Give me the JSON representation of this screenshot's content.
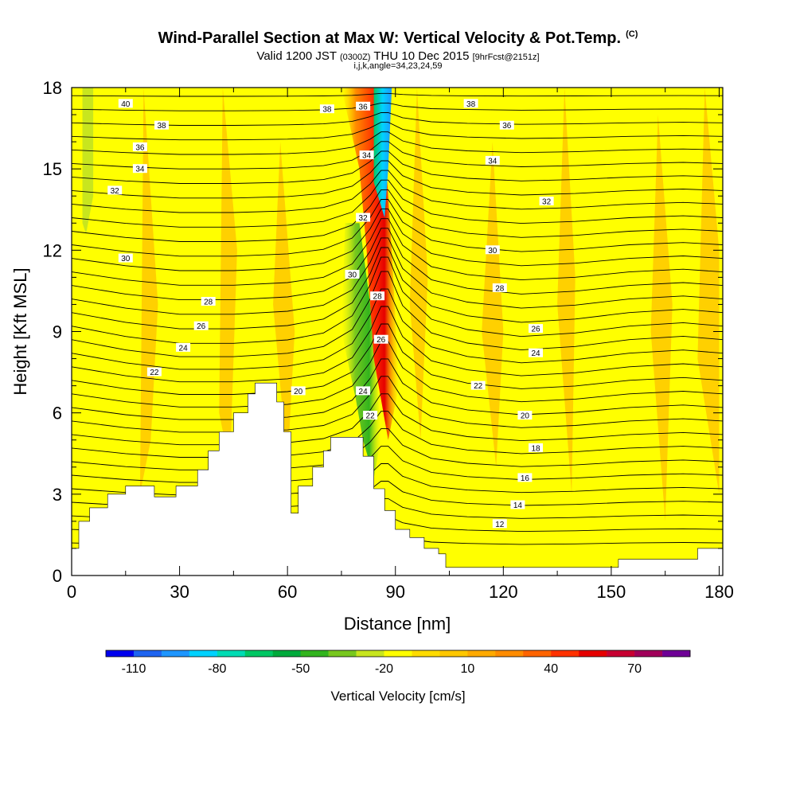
{
  "chart_data": {
    "type": "contour",
    "title": "Wind-Parallel Section at Max W: Vertical Velocity & Pot.Temp.",
    "title_mark": "(C)",
    "subtitle": {
      "valid": "Valid 1200 JST",
      "utc": "(0300Z)",
      "date": "THU 10 Dec 2015",
      "fcst": "[9hrFcst@2151z]"
    },
    "indices": "i,j,k,angle=34,23,24,59",
    "xlabel": "Distance [nm]",
    "ylabel": "Height [Kft MSL]",
    "xlim": [
      0,
      181
    ],
    "ylim": [
      0,
      18
    ],
    "xticks": [
      "0",
      "30",
      "60",
      "90",
      "120",
      "150",
      "180"
    ],
    "yticks": [
      "0",
      "3",
      "6",
      "9",
      "12",
      "15",
      "18"
    ],
    "colorbar": {
      "label": "Vertical Velocity [cm/s]",
      "ticks": [
        "-110",
        "-80",
        "-50",
        "-20",
        "10",
        "40",
        "70"
      ],
      "range": [
        -120,
        90
      ],
      "step": 10,
      "colors": [
        "#0000ee",
        "#1e64f0",
        "#1e96ff",
        "#00d2ff",
        "#00dcb4",
        "#00c864",
        "#00aa3c",
        "#32b41e",
        "#78c81e",
        "#c8e61e",
        "#ffff00",
        "#ffdc00",
        "#ffc800",
        "#ffaa00",
        "#ff8c00",
        "#ff6400",
        "#ff3200",
        "#e60000",
        "#c80032",
        "#a0005a",
        "#6e0096"
      ]
    },
    "terrain_kft": [
      [
        0,
        1.0
      ],
      [
        2,
        1.0
      ],
      [
        2,
        2.0
      ],
      [
        5,
        2.0
      ],
      [
        5,
        2.5
      ],
      [
        10,
        2.5
      ],
      [
        10,
        3.0
      ],
      [
        15,
        3.0
      ],
      [
        15,
        3.3
      ],
      [
        23,
        3.3
      ],
      [
        23,
        2.9
      ],
      [
        29,
        2.9
      ],
      [
        29,
        3.3
      ],
      [
        35,
        3.3
      ],
      [
        35,
        3.9
      ],
      [
        38,
        3.9
      ],
      [
        38,
        4.6
      ],
      [
        41,
        4.6
      ],
      [
        41,
        5.3
      ],
      [
        45,
        5.3
      ],
      [
        45,
        6.0
      ],
      [
        49,
        6.0
      ],
      [
        49,
        6.7
      ],
      [
        51,
        6.7
      ],
      [
        51,
        7.1
      ],
      [
        57,
        7.1
      ],
      [
        57,
        6.4
      ],
      [
        59,
        6.4
      ],
      [
        59,
        5.3
      ],
      [
        61,
        5.3
      ],
      [
        61,
        2.3
      ],
      [
        63,
        2.3
      ],
      [
        63,
        3.3
      ],
      [
        67,
        3.3
      ],
      [
        67,
        4.0
      ],
      [
        70,
        4.0
      ],
      [
        70,
        4.6
      ],
      [
        72,
        4.6
      ],
      [
        72,
        5.1
      ],
      [
        81,
        5.1
      ],
      [
        81,
        4.4
      ],
      [
        84,
        4.4
      ],
      [
        84,
        3.2
      ],
      [
        87,
        3.2
      ],
      [
        87,
        2.4
      ],
      [
        90,
        2.4
      ],
      [
        90,
        1.7
      ],
      [
        94,
        1.7
      ],
      [
        94,
        1.4
      ],
      [
        98,
        1.4
      ],
      [
        98,
        1.0
      ],
      [
        102,
        1.0
      ],
      [
        102,
        0.8
      ],
      [
        104,
        0.8
      ],
      [
        104,
        0.3
      ],
      [
        132,
        0.3
      ],
      [
        145,
        0.3
      ],
      [
        145,
        0.3
      ],
      [
        152,
        0.3
      ],
      [
        152,
        0.6
      ],
      [
        174,
        0.6
      ],
      [
        174,
        1.0
      ],
      [
        181,
        1.0
      ]
    ],
    "isentropes_c": [
      {
        "value": "40",
        "label_at": [
          15,
          17.4
        ]
      },
      {
        "value": "38",
        "label_at": [
          25,
          16.6
        ]
      },
      {
        "value": "36",
        "label_at": [
          19,
          15.8
        ]
      },
      {
        "value": "34",
        "label_at": [
          19,
          15.0
        ]
      },
      {
        "value": "32",
        "label_at": [
          12,
          14.2
        ]
      },
      {
        "value": "30",
        "label_at": [
          15,
          11.7
        ]
      },
      {
        "value": "28",
        "label_at": [
          38,
          10.1
        ]
      },
      {
        "value": "26",
        "label_at": [
          36,
          9.2
        ]
      },
      {
        "value": "24",
        "label_at": [
          31,
          8.4
        ]
      },
      {
        "value": "22",
        "label_at": [
          23,
          7.5
        ]
      },
      {
        "value": "20",
        "label_at": [
          63,
          6.8
        ]
      },
      {
        "value": "38",
        "label_at": [
          111,
          17.4
        ]
      },
      {
        "value": "36",
        "label_at": [
          121,
          16.6
        ]
      },
      {
        "value": "34",
        "label_at": [
          117,
          15.3
        ]
      },
      {
        "value": "32",
        "label_at": [
          132,
          13.8
        ]
      },
      {
        "value": "30",
        "label_at": [
          117,
          12.0
        ]
      },
      {
        "value": "28",
        "label_at": [
          119,
          10.6
        ]
      },
      {
        "value": "26",
        "label_at": [
          129,
          9.1
        ]
      },
      {
        "value": "24",
        "label_at": [
          129,
          8.2
        ]
      },
      {
        "value": "22",
        "label_at": [
          113,
          7.0
        ]
      },
      {
        "value": "20",
        "label_at": [
          126,
          5.9
        ]
      },
      {
        "value": "18",
        "label_at": [
          129,
          4.7
        ]
      },
      {
        "value": "16",
        "label_at": [
          126,
          3.6
        ]
      },
      {
        "value": "14",
        "label_at": [
          124,
          2.6
        ]
      },
      {
        "value": "12",
        "label_at": [
          119,
          1.9
        ]
      },
      {
        "value": "38",
        "label_at": [
          71,
          17.2
        ]
      },
      {
        "value": "36",
        "label_at": [
          81,
          17.3
        ]
      },
      {
        "value": "34",
        "label_at": [
          82,
          15.5
        ]
      },
      {
        "value": "32",
        "label_at": [
          81,
          13.2
        ]
      },
      {
        "value": "30",
        "label_at": [
          78,
          11.1
        ]
      },
      {
        "value": "28",
        "label_at": [
          85,
          10.3
        ]
      },
      {
        "value": "26",
        "label_at": [
          86,
          8.7
        ]
      },
      {
        "value": "24",
        "label_at": [
          81,
          6.8
        ]
      },
      {
        "value": "22",
        "label_at": [
          83,
          5.9
        ]
      }
    ]
  }
}
